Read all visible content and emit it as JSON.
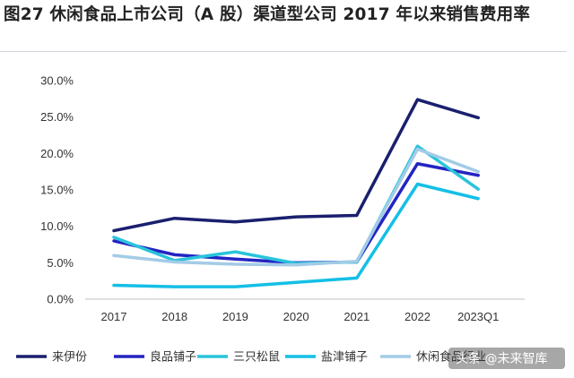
{
  "title": "图27 休闲食品上市公司（A 股）渠道型公司 2017 年以来销售费用率",
  "watermark": "头条 @未来智库",
  "chart_data": {
    "type": "line",
    "categories": [
      "2017",
      "2018",
      "2019",
      "2020",
      "2021",
      "2022",
      "2023Q1"
    ],
    "ylim": [
      0,
      30
    ],
    "yticks": [
      0,
      5,
      10,
      15,
      20,
      25,
      30
    ],
    "ytick_labels": [
      "0.0%",
      "5.0%",
      "10.0%",
      "15.0%",
      "20.0%",
      "25.0%",
      "30.0%"
    ],
    "grid": false,
    "legend_position": "bottom",
    "series": [
      {
        "name": "来伊份",
        "color": "#1a1f6e",
        "values": [
          9.4,
          11.1,
          10.6,
          11.3,
          11.5,
          27.4,
          24.9
        ]
      },
      {
        "name": "良品铺子",
        "color": "#2424c2",
        "values": [
          8.0,
          6.1,
          5.5,
          5.0,
          5.1,
          18.6,
          17.0
        ]
      },
      {
        "name": "三只松鼠",
        "color": "#29c4dc",
        "values": [
          8.5,
          5.3,
          6.5,
          4.9,
          5.1,
          21.0,
          15.1
        ]
      },
      {
        "name": "盐津铺子",
        "color": "#14bfe6",
        "values": [
          1.9,
          1.7,
          1.7,
          2.3,
          2.9,
          15.8,
          13.8
        ]
      },
      {
        "name": "休闲食品行业",
        "color": "#a3cbe6",
        "values": [
          6.0,
          5.1,
          4.8,
          4.7,
          5.2,
          20.6,
          17.5
        ]
      }
    ]
  }
}
